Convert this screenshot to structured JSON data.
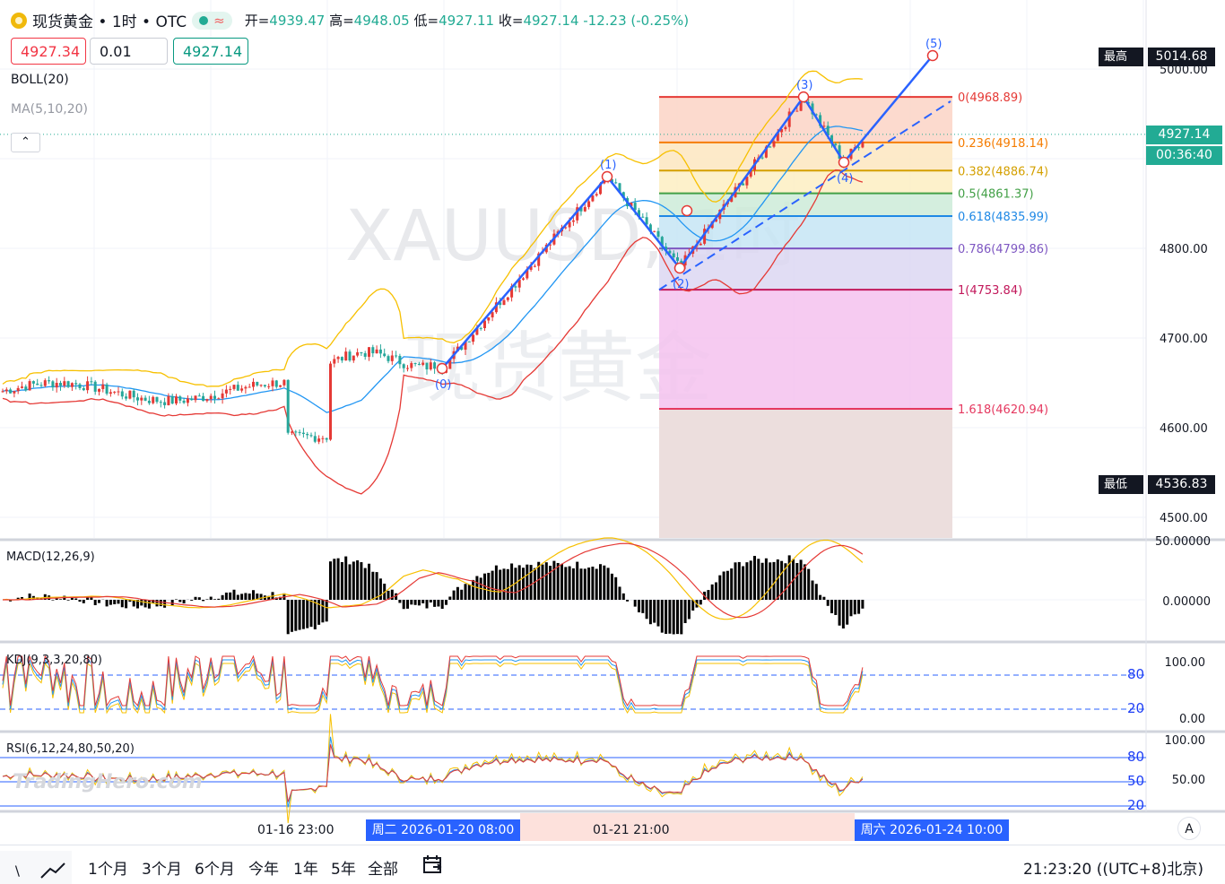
{
  "header": {
    "title": "现货黄金 • 1时 • OTC",
    "approx_icon": "≈",
    "ohlc": {
      "open_label": "开=",
      "open": "4939.47",
      "high_label": "高=",
      "high": "4948.05",
      "low_label": "低=",
      "low": "4927.11",
      "close_label": "收=",
      "close": "4927.14",
      "change": "-12.23 (-0.25%)"
    }
  },
  "trade": {
    "sell_price": "4927.34",
    "quantity": "0.01",
    "buy_price": "4927.14"
  },
  "indicators": {
    "boll": "BOLL(20)",
    "ma": "MA(5,10,20)",
    "collapse_icon": "chevron-up-icon"
  },
  "watermark": {
    "symbol": "XAUUSD, 1时",
    "name": "现货黄金",
    "brand": "TradingHero.com"
  },
  "price_axis": {
    "ticks": [
      "5000.00",
      "4900.00",
      "4800.00",
      "4700.00",
      "4600.00",
      "4500.00"
    ],
    "highest_label": "最高价",
    "highest_value": "5014.68",
    "lowest_label": "最低价",
    "lowest_value": "4536.83",
    "current_price": "4927.14",
    "countdown": "00:36:40"
  },
  "fib": [
    {
      "label": "0(4968.89)",
      "level": 4968.89,
      "color": "#e53935"
    },
    {
      "label": "0.236(4918.14)",
      "level": 4918.14,
      "color": "#f57c00"
    },
    {
      "label": "0.382(4886.74)",
      "level": 4886.74,
      "color": "#d4a000"
    },
    {
      "label": "0.5(4861.37)",
      "level": 4861.37,
      "color": "#43a047"
    },
    {
      "label": "0.618(4835.99)",
      "level": 4835.99,
      "color": "#1e88e5"
    },
    {
      "label": "0.786(4799.86)",
      "level": 4799.86,
      "color": "#7e57c2"
    },
    {
      "label": "1(4753.84)",
      "level": 4753.84,
      "color": "#c2185b"
    },
    {
      "label": "1.618(4620.94)",
      "level": 4620.94,
      "color": "#e53960"
    }
  ],
  "elliott": [
    "(0)",
    "(1)",
    "(2)",
    "(3)",
    "(4)",
    "(5)"
  ],
  "macd": {
    "label": "MACD(12,26,9)",
    "ticks": [
      "50.00000",
      "0.00000"
    ]
  },
  "kdj": {
    "label": "KDJ(9,3,3,20,80)",
    "ticks": [
      "100.00",
      "0.00"
    ],
    "levels": [
      "80",
      "20"
    ]
  },
  "rsi": {
    "label": "RSI(6,12,24,80,50,20)",
    "ticks": [
      "100.00",
      "50.00"
    ],
    "levels": [
      "80",
      "50",
      "20"
    ]
  },
  "time_axis": {
    "labels": [
      "01-16 23:00",
      "周二 2026-01-20  08:00",
      "01-21 21:00",
      "周六 2026-01-24  10:00"
    ],
    "auto_label": "A"
  },
  "bottom_bar": {
    "ranges": [
      "1个月",
      "3个月",
      "6个月",
      "今年",
      "1年",
      "5年",
      "全部"
    ],
    "clock": "21:23:20 ((UTC+8)北京)"
  },
  "chart_data": {
    "type": "candlestick",
    "title": "现货黄金 • 1时 • OTC",
    "y_axis_range": [
      4480,
      5030
    ],
    "price_path_keypoints": [
      {
        "label": "start",
        "price": 4640
      },
      {
        "label": "(0)",
        "price": 4666
      },
      {
        "label": "(1)",
        "price": 4880
      },
      {
        "label": "(2)",
        "price": 4778
      },
      {
        "label": "(3)",
        "price": 4968.89
      },
      {
        "label": "(4)",
        "price": 4896
      },
      {
        "label": "last",
        "price": 4927.14
      },
      {
        "label": "(5) target",
        "price": 5015
      }
    ],
    "fib_retracement": {
      "high": 4968.89,
      "low": 4753.84
    },
    "highest": 5014.68,
    "lowest": 4536.83,
    "grid": true
  }
}
